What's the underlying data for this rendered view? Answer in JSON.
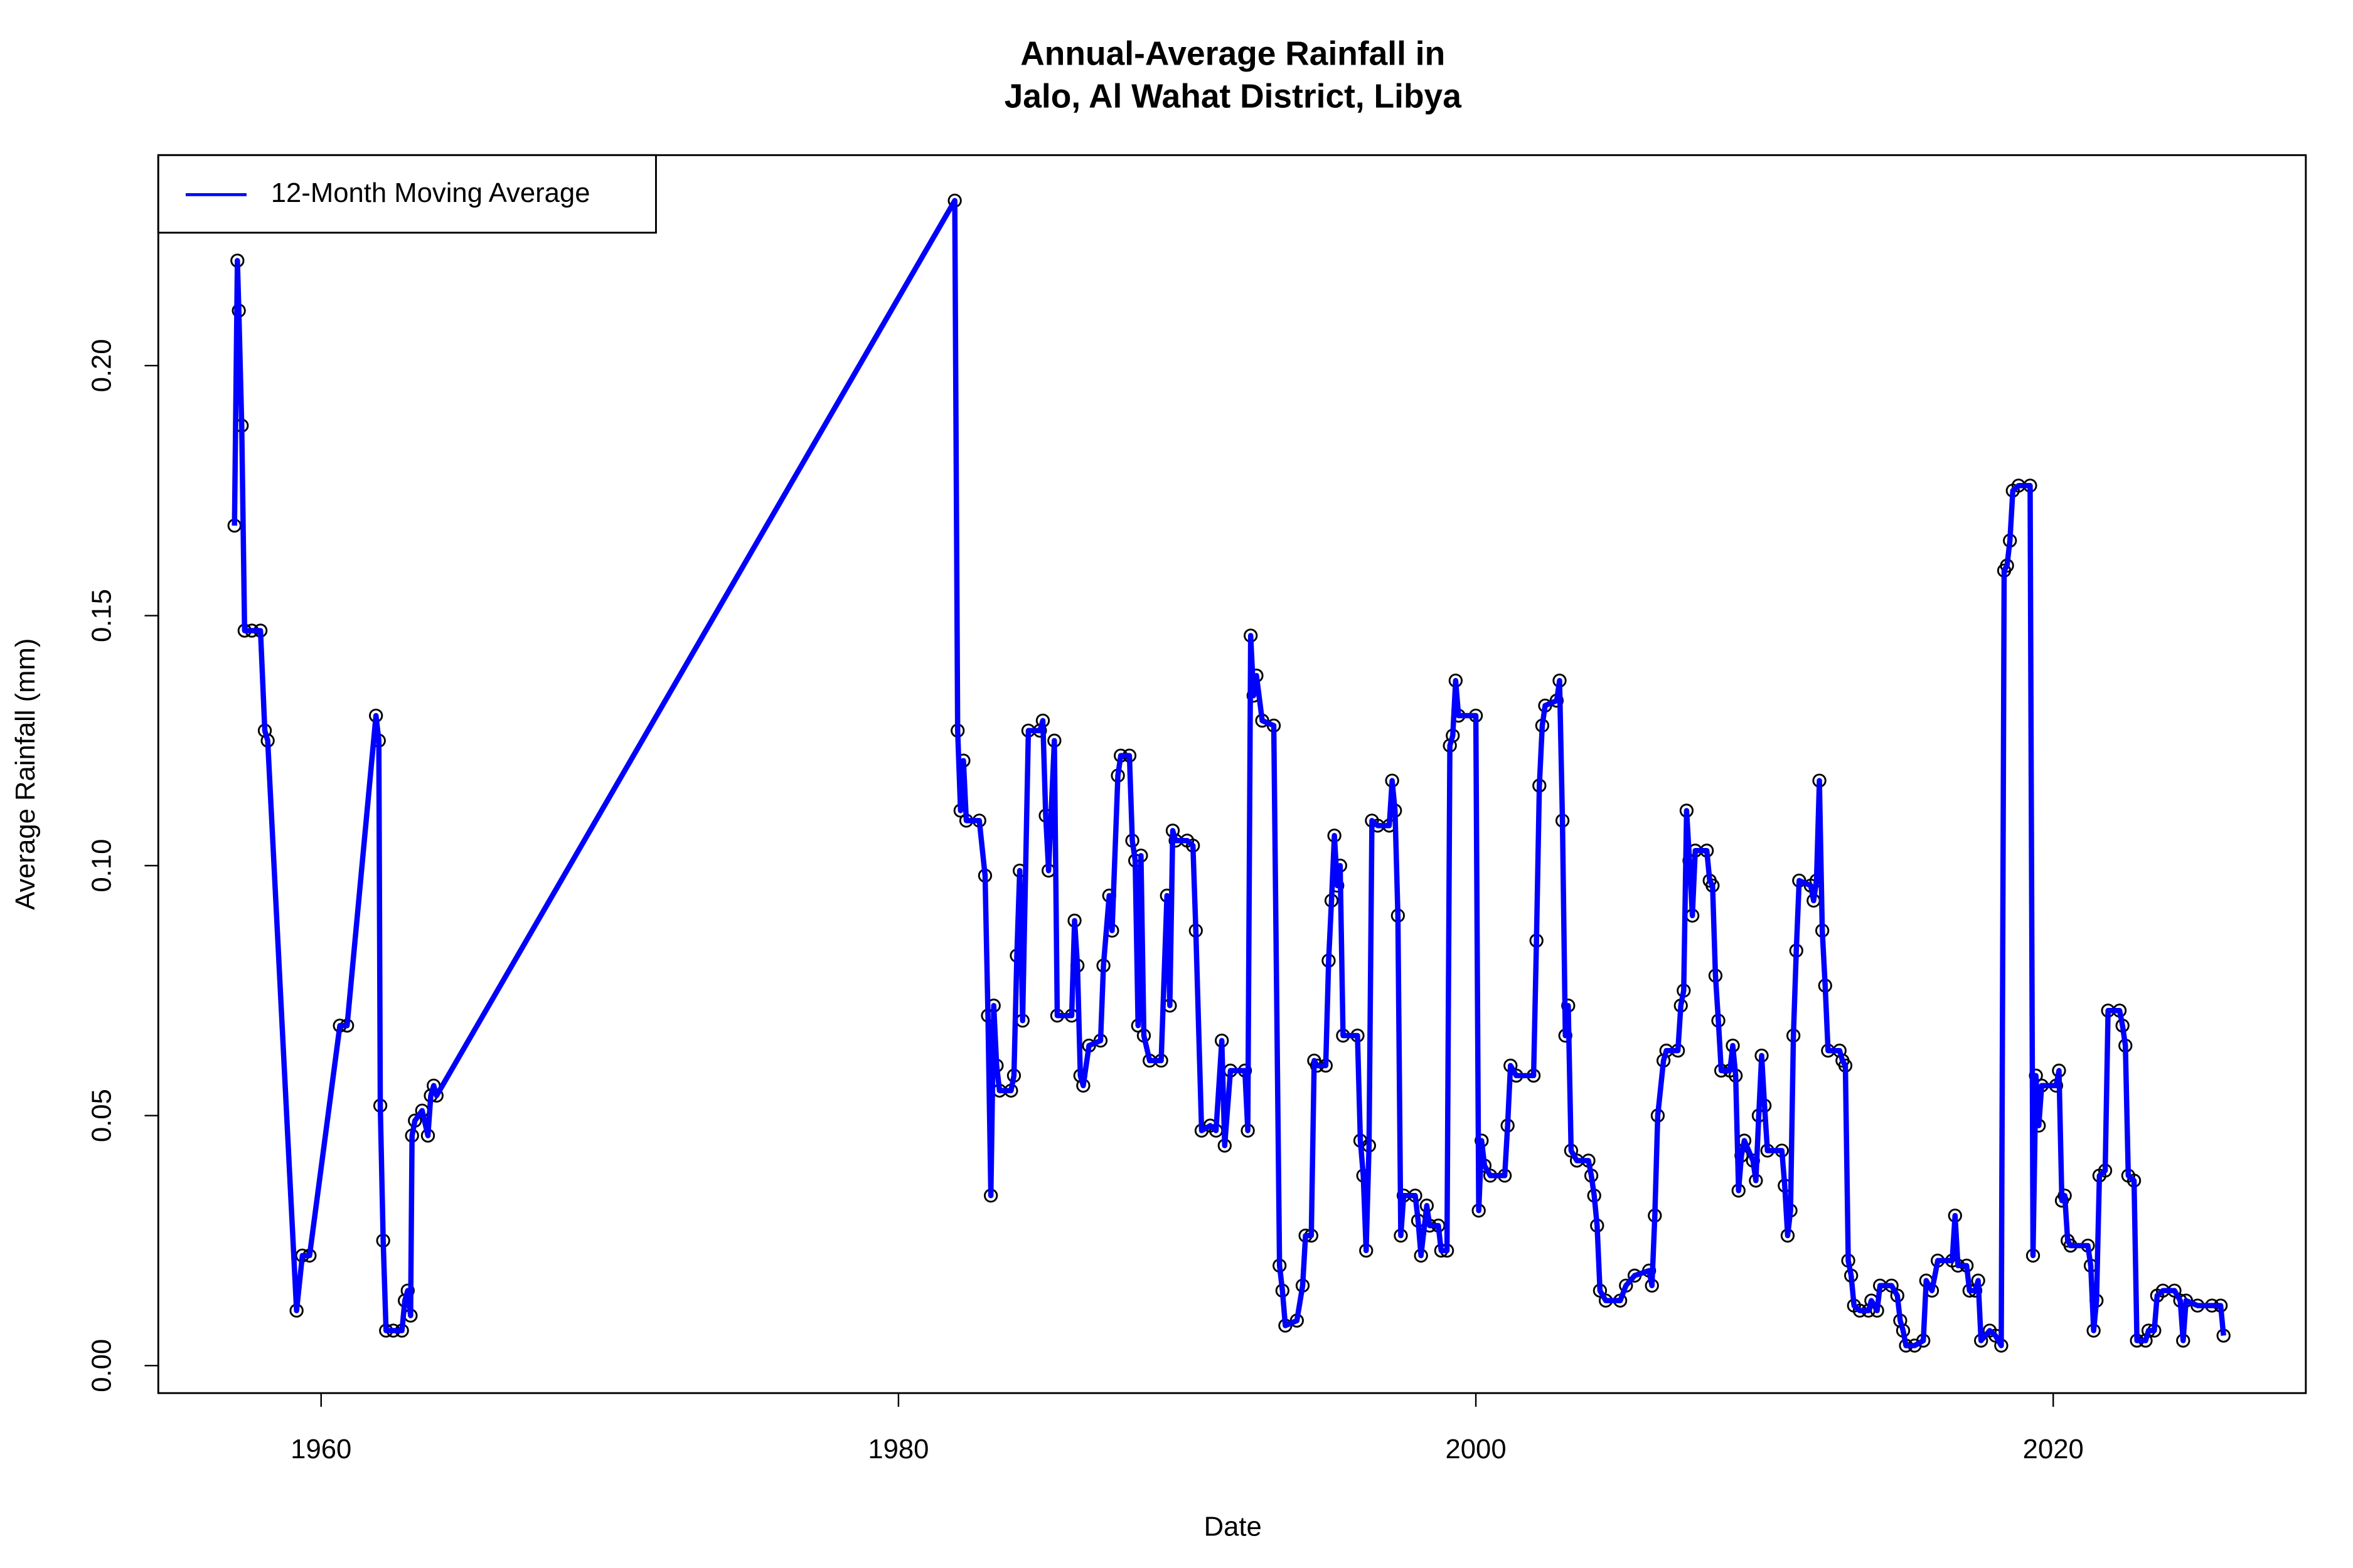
{
  "chart_data": {
    "type": "line",
    "title": "Annual-Average Rainfall in\nJalo, Al Wahat District, Libya",
    "x_label": "Date",
    "y_label": "Average Rainfall (mm)",
    "xlim": [
      1954.36,
      2028.75
    ],
    "ylim": [
      -0.0055,
      0.2421
    ],
    "xticks": [
      1960,
      1980,
      2000,
      2020
    ],
    "yticks": [
      {
        "value": 0,
        "label": "0.00"
      },
      0.05,
      {
        "value": 0.1,
        "label": "0.10"
      },
      0.15,
      {
        "value": 0.2,
        "label": "0.20"
      }
    ],
    "legend": "top-left",
    "x": [
      1957.0,
      1957.1,
      1957.15,
      1957.25,
      1957.35,
      1957.6,
      1957.9,
      1958.05,
      1958.15,
      1959.15,
      1959.35,
      1959.6,
      1960.65,
      1960.9,
      1961.9,
      1962.0,
      1962.05,
      1962.15,
      1962.25,
      1962.5,
      1962.8,
      1962.9,
      1963.0,
      1963.1,
      1963.15,
      1963.25,
      1963.5,
      1963.7,
      1963.8,
      1963.9,
      1964.0,
      1981.95,
      1982.05,
      1982.15,
      1982.25,
      1982.35,
      1982.8,
      1983.0,
      1983.1,
      1983.2,
      1983.3,
      1983.4,
      1983.5,
      1983.9,
      1984.0,
      1984.1,
      1984.2,
      1984.3,
      1984.5,
      1984.9,
      1985.0,
      1985.1,
      1985.2,
      1985.4,
      1985.5,
      1986.0,
      1986.1,
      1986.2,
      1986.3,
      1986.4,
      1986.6,
      1987.0,
      1987.1,
      1987.3,
      1987.4,
      1987.6,
      1987.7,
      1988.0,
      1988.1,
      1988.2,
      1988.3,
      1988.4,
      1988.5,
      1988.7,
      1989.1,
      1989.3,
      1989.4,
      1989.5,
      1989.6,
      1990.0,
      1990.2,
      1990.3,
      1990.5,
      1990.8,
      1991.0,
      1991.2,
      1991.3,
      1991.5,
      1992.0,
      1992.1,
      1992.2,
      1992.3,
      1992.4,
      1992.6,
      1993.0,
      1993.2,
      1993.3,
      1993.4,
      1993.8,
      1994.0,
      1994.1,
      1994.3,
      1994.4,
      1994.5,
      1994.8,
      1994.9,
      1995.0,
      1995.1,
      1995.2,
      1995.3,
      1995.4,
      1995.9,
      1996.0,
      1996.1,
      1996.2,
      1996.3,
      1996.4,
      1996.6,
      1997.0,
      1997.1,
      1997.2,
      1997.3,
      1997.4,
      1997.5,
      1997.9,
      1998.0,
      1998.1,
      1998.3,
      1998.4,
      1998.7,
      1998.8,
      1999.0,
      1999.1,
      1999.2,
      1999.3,
      1999.4,
      2000.0,
      2000.1,
      2000.2,
      2000.3,
      2000.5,
      2001.0,
      2001.1,
      2001.2,
      2001.4,
      2002.0,
      2002.1,
      2002.2,
      2002.3,
      2002.4,
      2002.8,
      2002.9,
      2003.0,
      2003.1,
      2003.2,
      2003.3,
      2003.5,
      2003.9,
      2004.0,
      2004.1,
      2004.2,
      2004.3,
      2004.5,
      2005.0,
      2005.2,
      2005.5,
      2006.0,
      2006.1,
      2006.2,
      2006.3,
      2006.5,
      2006.6,
      2007.0,
      2007.1,
      2007.2,
      2007.3,
      2007.4,
      2007.5,
      2007.6,
      2008.0,
      2008.1,
      2008.2,
      2008.3,
      2008.4,
      2008.5,
      2008.8,
      2008.9,
      2009.0,
      2009.1,
      2009.2,
      2009.3,
      2009.6,
      2009.7,
      2009.8,
      2009.9,
      2010.0,
      2010.1,
      2010.6,
      2010.7,
      2010.8,
      2010.9,
      2011.0,
      2011.1,
      2011.2,
      2011.6,
      2011.7,
      2011.8,
      2011.9,
      2012.0,
      2012.1,
      2012.2,
      2012.6,
      2012.7,
      2012.8,
      2012.9,
      2013.0,
      2013.1,
      2013.3,
      2013.6,
      2013.7,
      2013.9,
      2014.0,
      2014.4,
      2014.6,
      2014.7,
      2014.8,
      2014.9,
      2015.2,
      2015.5,
      2015.6,
      2015.8,
      2016.0,
      2016.5,
      2016.6,
      2016.7,
      2017.0,
      2017.1,
      2017.3,
      2017.4,
      2017.5,
      2017.8,
      2018.0,
      2018.2,
      2018.3,
      2018.4,
      2018.5,
      2018.6,
      2018.8,
      2019.2,
      2019.3,
      2019.4,
      2019.5,
      2019.6,
      2020.1,
      2020.2,
      2020.3,
      2020.4,
      2020.5,
      2020.6,
      2021.2,
      2021.3,
      2021.4,
      2021.5,
      2021.6,
      2021.8,
      2021.9,
      2022.3,
      2022.4,
      2022.5,
      2022.6,
      2022.8,
      2022.9,
      2023.2,
      2023.3,
      2023.5,
      2023.6,
      2023.8,
      2024.2,
      2024.4,
      2024.5,
      2024.6,
      2025.0,
      2025.5,
      2025.8,
      2025.9
    ],
    "series": [
      {
        "name": "12-Month Moving Average",
        "color": "#0000ff",
        "point_color": "#000000",
        "values": [
          0.168,
          0.221,
          0.211,
          0.188,
          0.147,
          0.147,
          0.147,
          0.127,
          0.125,
          0.011,
          0.022,
          0.022,
          0.068,
          0.068,
          0.13,
          0.125,
          0.052,
          0.025,
          0.007,
          0.007,
          0.007,
          0.013,
          0.015,
          0.01,
          0.046,
          0.049,
          0.051,
          0.046,
          0.054,
          0.056,
          0.054,
          0.233,
          0.127,
          0.111,
          0.121,
          0.109,
          0.109,
          0.098,
          0.07,
          0.034,
          0.072,
          0.06,
          0.055,
          0.055,
          0.058,
          0.082,
          0.099,
          0.069,
          0.127,
          0.127,
          0.129,
          0.11,
          0.099,
          0.125,
          0.07,
          0.07,
          0.089,
          0.08,
          0.058,
          0.056,
          0.064,
          0.065,
          0.08,
          0.094,
          0.087,
          0.118,
          0.122,
          0.122,
          0.105,
          0.101,
          0.068,
          0.102,
          0.066,
          0.061,
          0.061,
          0.094,
          0.072,
          0.107,
          0.105,
          0.105,
          0.104,
          0.087,
          0.047,
          0.048,
          0.047,
          0.065,
          0.044,
          0.059,
          0.059,
          0.047,
          0.146,
          0.134,
          0.138,
          0.129,
          0.128,
          0.02,
          0.015,
          0.008,
          0.009,
          0.016,
          0.026,
          0.026,
          0.061,
          0.06,
          0.06,
          0.081,
          0.093,
          0.106,
          0.096,
          0.1,
          0.066,
          0.066,
          0.045,
          0.038,
          0.023,
          0.044,
          0.109,
          0.108,
          0.108,
          0.117,
          0.111,
          0.09,
          0.026,
          0.034,
          0.034,
          0.029,
          0.022,
          0.032,
          0.028,
          0.028,
          0.023,
          0.023,
          0.124,
          0.126,
          0.137,
          0.13,
          0.13,
          0.031,
          0.045,
          0.04,
          0.038,
          0.038,
          0.048,
          0.06,
          0.058,
          0.058,
          0.085,
          0.116,
          0.128,
          0.132,
          0.133,
          0.137,
          0.109,
          0.066,
          0.072,
          0.043,
          0.041,
          0.041,
          0.038,
          0.034,
          0.028,
          0.015,
          0.013,
          0.013,
          0.016,
          0.018,
          0.019,
          0.016,
          0.03,
          0.05,
          0.061,
          0.063,
          0.063,
          0.072,
          0.075,
          0.111,
          0.101,
          0.09,
          0.103,
          0.103,
          0.097,
          0.096,
          0.078,
          0.069,
          0.059,
          0.059,
          0.064,
          0.058,
          0.035,
          0.042,
          0.045,
          0.041,
          0.037,
          0.05,
          0.062,
          0.052,
          0.043,
          0.043,
          0.036,
          0.026,
          0.031,
          0.066,
          0.083,
          0.097,
          0.096,
          0.093,
          0.097,
          0.117,
          0.087,
          0.076,
          0.063,
          0.063,
          0.061,
          0.06,
          0.021,
          0.018,
          0.012,
          0.011,
          0.011,
          0.013,
          0.011,
          0.016,
          0.016,
          0.014,
          0.009,
          0.007,
          0.004,
          0.004,
          0.005,
          0.017,
          0.015,
          0.021,
          0.021,
          0.03,
          0.02,
          0.02,
          0.015,
          0.015,
          0.017,
          0.005,
          0.007,
          0.006,
          0.004,
          0.159,
          0.16,
          0.165,
          0.175,
          0.176,
          0.176,
          0.022,
          0.058,
          0.048,
          0.056,
          0.056,
          0.059,
          0.033,
          0.034,
          0.025,
          0.024,
          0.024,
          0.02,
          0.007,
          0.013,
          0.038,
          0.039,
          0.071,
          0.071,
          0.068,
          0.064,
          0.038,
          0.037,
          0.005,
          0.005,
          0.007,
          0.007,
          0.014,
          0.015,
          0.015,
          0.013,
          0.005,
          0.013,
          0.012,
          0.012,
          0.012,
          0.006
        ]
      }
    ]
  }
}
